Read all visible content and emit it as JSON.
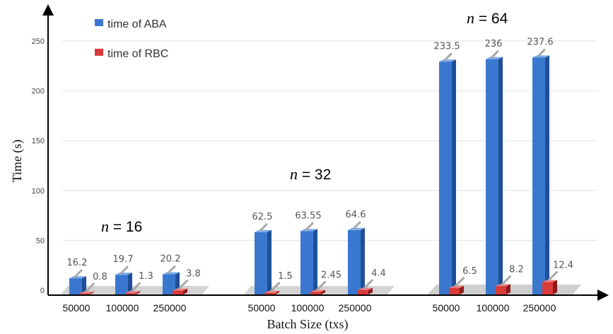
{
  "chart_data": {
    "type": "bar",
    "xlabel": "Batch Size (txs)",
    "ylabel": "Time (s)",
    "ylim": [
      0,
      250
    ],
    "yticks": [
      0,
      50,
      100,
      150,
      200,
      250
    ],
    "legend": {
      "placement": "top-left"
    },
    "grid": true,
    "groups": [
      {
        "label_var": "n",
        "label_rest": " = 16",
        "categories": [
          "50000",
          "100000",
          "250000"
        ],
        "series": [
          {
            "name": "time of ABA",
            "values": [
              16.2,
              19.7,
              20.2
            ],
            "labels": [
              "16.2",
              "19.7",
              "20.2"
            ]
          },
          {
            "name": "time of RBC",
            "values": [
              0.8,
              1.3,
              3.8
            ],
            "labels": [
              "0.8",
              "1.3",
              "3.8"
            ]
          }
        ]
      },
      {
        "label_var": "n",
        "label_rest": " = 32",
        "categories": [
          "50000",
          "100000",
          "250000"
        ],
        "series": [
          {
            "name": "time of ABA",
            "values": [
              62.5,
              63.55,
              64.6
            ],
            "labels": [
              "62.5",
              "63.55",
              "64.6"
            ]
          },
          {
            "name": "time of RBC",
            "values": [
              1.5,
              2.45,
              4.4
            ],
            "labels": [
              "1.5",
              "2.45",
              "4.4"
            ]
          }
        ]
      },
      {
        "label_var": "n",
        "label_rest": " = 64",
        "categories": [
          "50000",
          "100000",
          "250000"
        ],
        "series": [
          {
            "name": "time of ABA",
            "values": [
              233.5,
              236,
              237.6
            ],
            "labels": [
              "233.5",
              "236",
              "237.6"
            ]
          },
          {
            "name": "time of RBC",
            "values": [
              6.5,
              8.2,
              12.4
            ],
            "labels": [
              "6.5",
              "8.2",
              "12.4"
            ]
          }
        ]
      }
    ],
    "series_names": [
      "time of ABA",
      "time of RBC"
    ],
    "colors": {
      "aba_front": "#3a78d0",
      "aba_side": "#1f4f98",
      "aba_top": "#79a9ec",
      "rbc_front": "#d93a3a",
      "rbc_side": "#8f1a1a",
      "rbc_top": "#f07a7a"
    }
  }
}
